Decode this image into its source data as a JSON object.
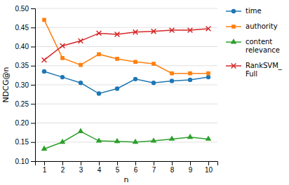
{
  "chart_data": {
    "type": "line",
    "x": [
      1,
      2,
      3,
      4,
      5,
      6,
      7,
      8,
      9,
      10
    ],
    "series": [
      {
        "name": "time",
        "marker": "circle",
        "values": [
          0.335,
          0.32,
          0.305,
          0.277,
          0.29,
          0.315,
          0.305,
          0.31,
          0.313,
          0.32
        ]
      },
      {
        "name": "authority",
        "marker": "square",
        "values": [
          0.47,
          0.37,
          0.352,
          0.38,
          0.368,
          0.36,
          0.355,
          0.33,
          0.33,
          0.33
        ]
      },
      {
        "name": "content\nrelevance",
        "marker": "triangle",
        "values": [
          0.132,
          0.15,
          0.178,
          0.153,
          0.152,
          0.15,
          0.153,
          0.158,
          0.163,
          0.158
        ]
      },
      {
        "name": "RankSVM_\nFull",
        "marker": "x",
        "values": [
          0.365,
          0.402,
          0.415,
          0.435,
          0.432,
          0.438,
          0.44,
          0.443,
          0.443,
          0.447
        ]
      }
    ],
    "xlabel": "n",
    "ylabel": "NDCG@n",
    "xlim": [
      0.5,
      10.5
    ],
    "xticks": [
      1,
      2,
      3,
      4,
      5,
      6,
      7,
      8,
      9,
      10
    ],
    "ylim": [
      0.1,
      0.5
    ],
    "yticks": [
      {
        "value": 0.1,
        "label": "0.10"
      },
      0.15,
      {
        "value": 0.2,
        "label": "0.20"
      },
      0.25,
      {
        "value": 0.3,
        "label": "0.30"
      },
      0.35,
      {
        "value": 0.4,
        "label": "0.40"
      },
      0.45,
      {
        "value": 0.5,
        "label": "0.50"
      }
    ],
    "grid": true,
    "legend": "right"
  }
}
